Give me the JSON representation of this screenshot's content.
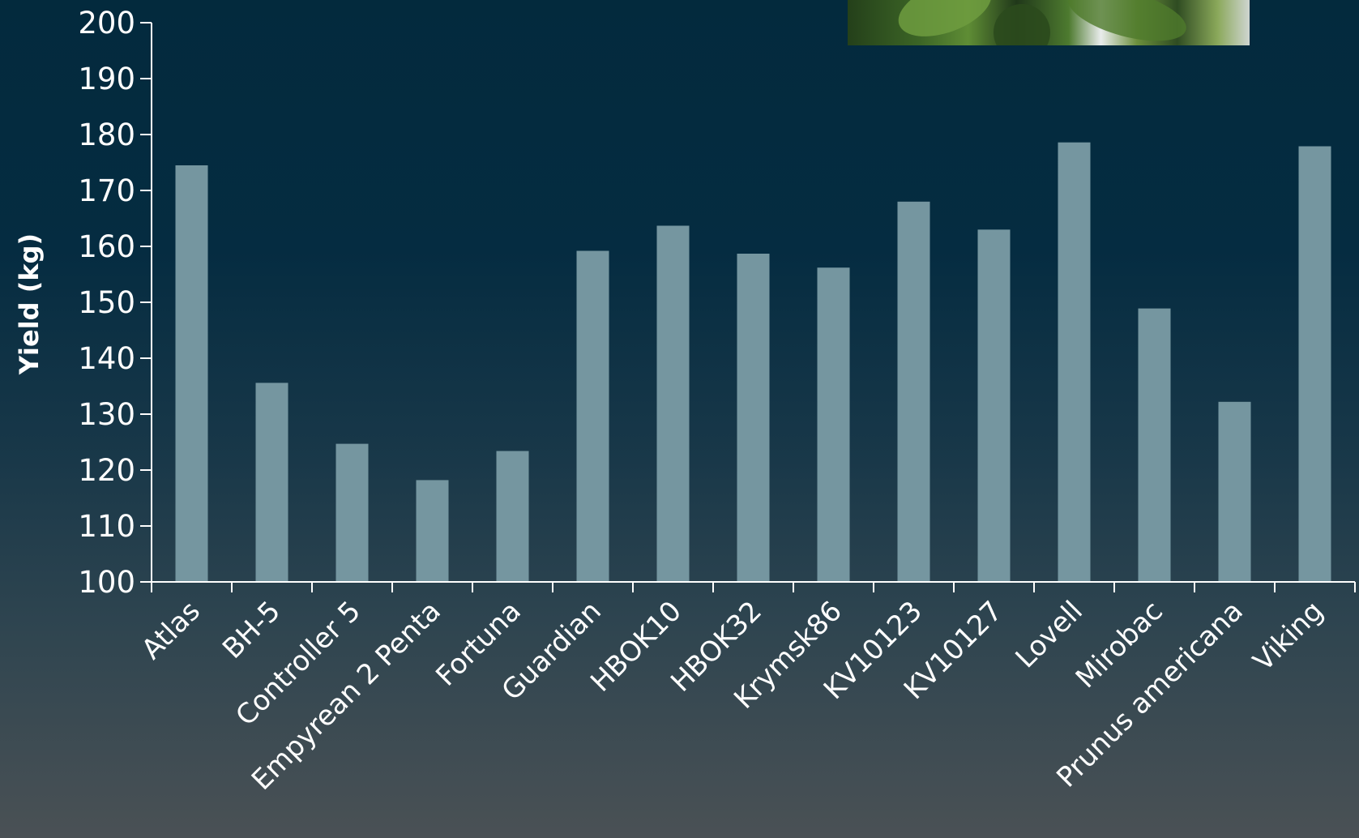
{
  "chart_data": {
    "type": "bar",
    "ylabel": "Yield (kg)",
    "xlabel": "",
    "ylim": [
      100,
      200
    ],
    "yticks": [
      100,
      110,
      120,
      130,
      140,
      150,
      160,
      170,
      180,
      190,
      200
    ],
    "categories": [
      "Atlas",
      "BH-5",
      "Controller 5",
      "Empyrean 2 Penta",
      "Fortuna",
      "Guardian",
      "HBOK10",
      "HBOK32",
      "Krymsk86",
      "KV10123",
      "KV10127",
      "Lovell",
      "Mirobac",
      "Prunus americana",
      "Viking"
    ],
    "values": [
      174.5,
      135.6,
      124.7,
      118.2,
      123.4,
      159.2,
      163.7,
      158.7,
      156.2,
      168.0,
      163.0,
      178.6,
      148.9,
      132.2,
      177.9
    ],
    "grid": false,
    "legend": "none",
    "colors": {
      "bar": "#7596a0",
      "axis": "#ffffff",
      "text": "#ffffff"
    }
  },
  "decorations": {
    "photo_icon": "peach-tree-leaves-photo"
  }
}
